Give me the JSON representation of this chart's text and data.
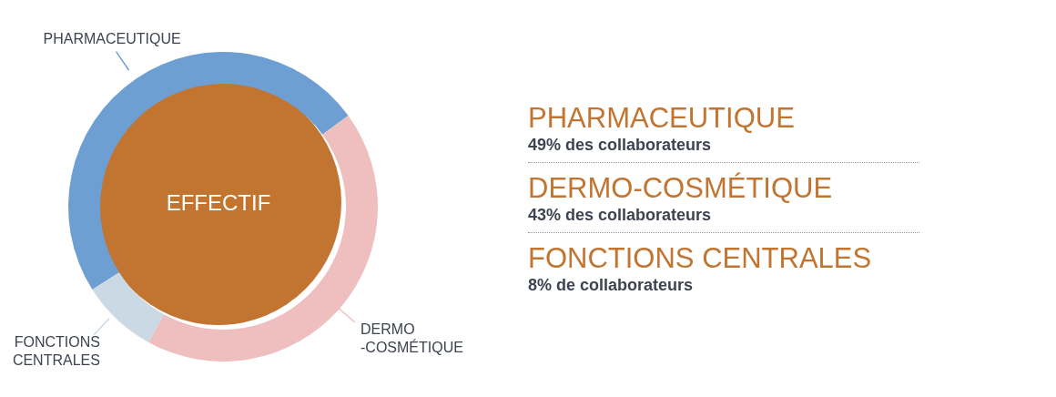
{
  "chart_data": {
    "type": "donut",
    "categories": [
      "PHARMACEUTIQUE",
      "DERMO-COSMÉTIQUE",
      "FONCTIONS CENTRALES"
    ],
    "values": [
      49,
      43,
      8
    ],
    "colors": [
      "#6d9fd3",
      "#efbfc0",
      "#cbd9e5"
    ],
    "annotations": [
      "EFFECTIF",
      "PHARMACEUTIQUE",
      "49% des collaborateurs",
      "DERMO-COSMÉTIQUE",
      "43% des collaborateurs",
      "FONCTIONS CENTRALES",
      "8% de collaborateurs"
    ]
  }
}
